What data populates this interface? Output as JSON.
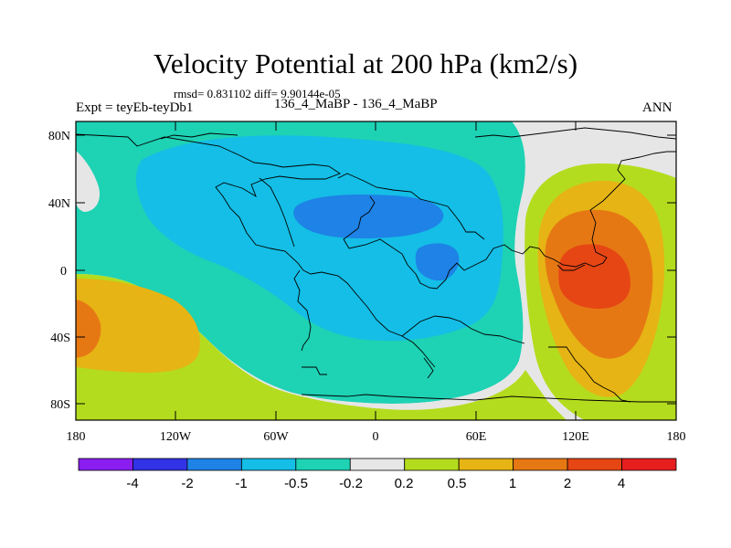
{
  "title": "Velocity Potential at 200 hPa (km2/s)",
  "stats": "rmsd= 0.831102  diff= 9.90144e-05",
  "expt": "Expt = teyEb-teyDb1",
  "case": "136_4_MaBP - 136_4_MaBP",
  "season": "ANN",
  "y_ticks": [
    "80N",
    "40N",
    "0",
    "40S",
    "80S"
  ],
  "x_ticks": [
    "180",
    "120W",
    "60W",
    "0",
    "60E",
    "120E",
    "180"
  ],
  "colorbar": {
    "labels": [
      "-4",
      "-2",
      "-1",
      "-0.5",
      "-0.2",
      "0.2",
      "0.5",
      "1",
      "2",
      "4"
    ],
    "colors": [
      "#8a1ef0",
      "#3232e6",
      "#1e82e6",
      "#14bee6",
      "#1ed2b4",
      "#e6e6e6",
      "#b4dc1e",
      "#e6b414",
      "#e67814",
      "#e64614",
      "#e61e1e"
    ]
  },
  "field_colors": {
    "neutral": "#e6e6e6",
    "weak_neg": "#1ed2b4",
    "mod_neg": "#14bee6",
    "strong_neg": "#1e82e6",
    "weak_pos": "#b4dc1e",
    "mod_pos": "#e6b414",
    "strong_pos": "#e67814",
    "max_pos": "#e64614"
  }
}
